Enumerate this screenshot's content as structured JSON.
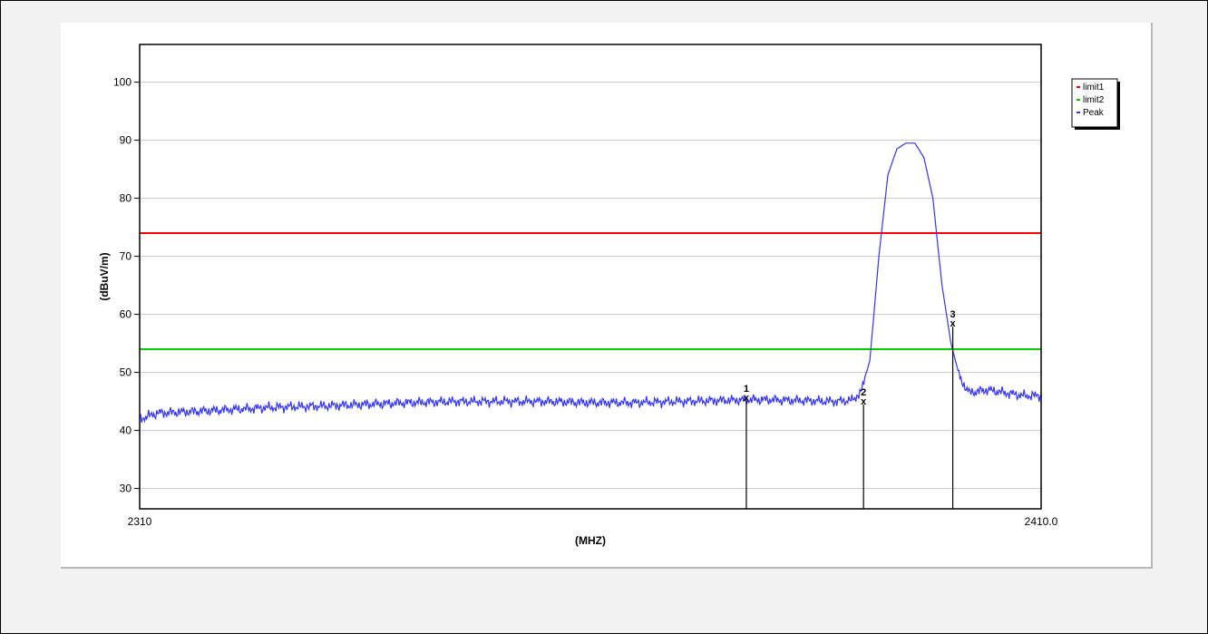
{
  "chart_data": {
    "type": "line",
    "xlabel": "(MHZ)",
    "ylabel": "(dBuV/m)",
    "xlim": [
      2310,
      2410
    ],
    "ylim": [
      26.5,
      106.5
    ],
    "x_tick_labels": [
      "2310",
      "2410.0"
    ],
    "yticks": [
      30,
      40,
      50,
      60,
      70,
      80,
      90,
      100
    ],
    "grid": "horizontal",
    "legend_position": "top-right",
    "series": [
      {
        "name": "limit1",
        "color": "#ff0000",
        "x": [
          2310,
          2410
        ],
        "y": [
          74,
          74
        ]
      },
      {
        "name": "limit2",
        "color": "#00cc00",
        "x": [
          2310,
          2410
        ],
        "y": [
          54,
          54
        ]
      },
      {
        "name": "Peak",
        "color": "#3333ff",
        "x": [
          2310,
          2312,
          2315,
          2320,
          2325,
          2330,
          2335,
          2340,
          2345,
          2350,
          2355,
          2360,
          2365,
          2370,
          2375,
          2378,
          2380,
          2382,
          2385,
          2387,
          2389,
          2390,
          2391,
          2392,
          2393,
          2394,
          2395,
          2396,
          2397,
          2398,
          2399,
          2400,
          2401,
          2402,
          2404,
          2406,
          2408,
          2410
        ],
        "y": [
          42,
          43,
          43.2,
          43.6,
          44,
          44.2,
          44.5,
          44.8,
          45,
          45,
          45,
          44.8,
          44.8,
          45,
          45.2,
          45.3,
          45.3,
          45.2,
          45.1,
          45,
          45.2,
          46.5,
          52,
          70,
          84,
          88.5,
          89.5,
          89.5,
          87,
          80,
          65,
          55,
          49,
          46.5,
          47,
          46.5,
          46,
          46
        ]
      }
    ],
    "markers": [
      {
        "label": "1",
        "x": 2377.3,
        "y": 45.7
      },
      {
        "label": "2",
        "x": 2390.3,
        "y": 45.1
      },
      {
        "label": "3",
        "x": 2400.2,
        "y": 58.5
      }
    ]
  }
}
